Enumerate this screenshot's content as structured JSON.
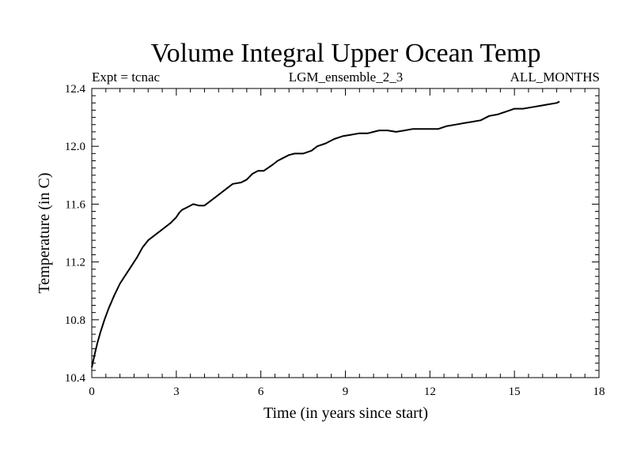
{
  "chart_data": {
    "type": "line",
    "title": "Volume Integral Upper Ocean Temp",
    "subtitle_left": "Expt = tcnac",
    "subtitle_center": "LGM_ensemble_2_3",
    "subtitle_right": "ALL_MONTHS",
    "xlabel": "Time (in years since start)",
    "ylabel": "Temperature (in C)",
    "xlim": [
      0,
      18
    ],
    "ylim": [
      10.4,
      12.4
    ],
    "xticks": [
      0,
      3,
      6,
      9,
      12,
      15,
      18
    ],
    "xtick_labels": [
      "0",
      "3",
      "6",
      "9",
      "12",
      "15",
      "18"
    ],
    "yticks": [
      10.4,
      10.8,
      11.2,
      11.6,
      12.0,
      12.4
    ],
    "ytick_labels": [
      "10.4",
      "10.8",
      "11.2",
      "11.6",
      "12.0",
      "12.4"
    ],
    "grid": false,
    "series": [
      {
        "name": "Upper Ocean Temp",
        "color": "#000000",
        "x": [
          0.0,
          0.1,
          0.2,
          0.3,
          0.45,
          0.6,
          0.8,
          1.0,
          1.2,
          1.4,
          1.6,
          1.8,
          2.0,
          2.2,
          2.4,
          2.6,
          2.8,
          3.0,
          3.1,
          3.2,
          3.4,
          3.6,
          3.8,
          4.0,
          4.2,
          4.4,
          4.6,
          4.8,
          5.0,
          5.3,
          5.5,
          5.7,
          5.9,
          6.1,
          6.4,
          6.6,
          6.8,
          7.0,
          7.2,
          7.5,
          7.8,
          8.0,
          8.3,
          8.6,
          8.9,
          9.2,
          9.5,
          9.8,
          10.0,
          10.2,
          10.5,
          10.8,
          11.1,
          11.4,
          11.7,
          12.0,
          12.3,
          12.6,
          12.9,
          13.2,
          13.5,
          13.8,
          14.1,
          14.4,
          14.7,
          15.0,
          15.3,
          15.6,
          15.9,
          16.2,
          16.5,
          16.6
        ],
        "y": [
          10.47,
          10.56,
          10.64,
          10.71,
          10.8,
          10.88,
          10.97,
          11.05,
          11.11,
          11.17,
          11.23,
          11.3,
          11.35,
          11.38,
          11.41,
          11.44,
          11.47,
          11.51,
          11.54,
          11.56,
          11.58,
          11.6,
          11.59,
          11.59,
          11.62,
          11.65,
          11.68,
          11.71,
          11.74,
          11.75,
          11.77,
          11.81,
          11.83,
          11.83,
          11.87,
          11.9,
          11.92,
          11.94,
          11.95,
          11.95,
          11.97,
          12.0,
          12.02,
          12.05,
          12.07,
          12.08,
          12.09,
          12.09,
          12.1,
          12.11,
          12.11,
          12.1,
          12.11,
          12.12,
          12.12,
          12.12,
          12.12,
          12.14,
          12.15,
          12.16,
          12.17,
          12.18,
          12.21,
          12.22,
          12.24,
          12.26,
          12.26,
          12.27,
          12.28,
          12.29,
          12.3,
          12.31
        ]
      }
    ]
  }
}
